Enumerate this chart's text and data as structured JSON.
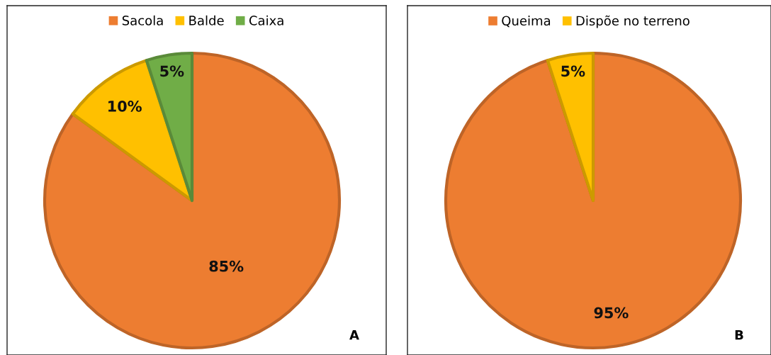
{
  "chart_data": [
    {
      "type": "pie",
      "categories": [
        "Sacola",
        "Balde",
        "Caixa"
      ],
      "values": [
        85,
        10,
        5
      ],
      "colors": [
        "#ed7d31",
        "#ffc000",
        "#70ad47"
      ],
      "value_labels": [
        "85%",
        "10%",
        "5%"
      ],
      "legend": "top",
      "annotations": [
        "A"
      ]
    },
    {
      "type": "pie",
      "categories": [
        "Queima",
        "Dispõe no terreno"
      ],
      "values": [
        95,
        5
      ],
      "colors": [
        "#ed7d31",
        "#ffc000"
      ],
      "value_labels": [
        "95%",
        "5%"
      ],
      "legend": "top",
      "annotations": [
        "B"
      ]
    }
  ]
}
